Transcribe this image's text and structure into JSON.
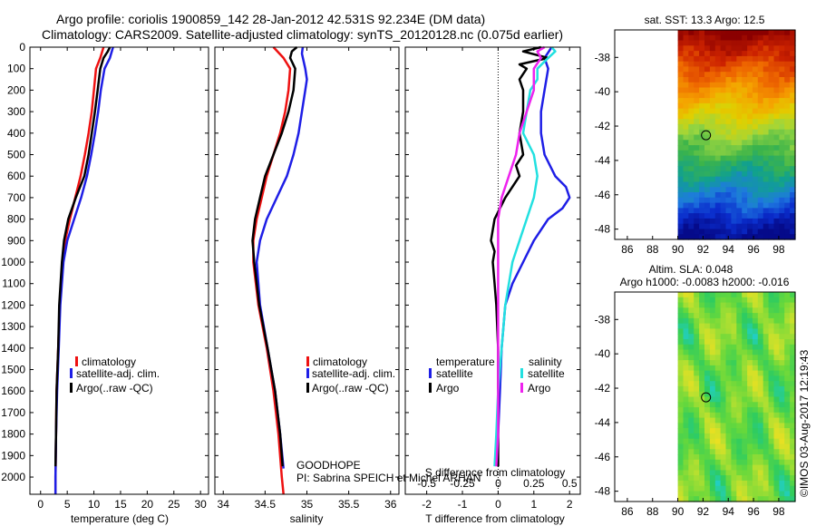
{
  "title": {
    "line1": "Argo profile: coriolis 1900859_142 28-Jan-2012 42.531S 92.234E (DM data)",
    "line2": "Climatology: CARS2009. Satellite-adjusted climatology: synTS_20120128.nc (0.075d earlier)"
  },
  "colors": {
    "climatology": "#ee1111",
    "satellite": "#1e1ee6",
    "argo": "#000000",
    "satellite_salinity": "#22e0e0",
    "argo_salinity": "#ee22ee"
  },
  "chart_data": [
    {
      "type": "line",
      "name": "temperature-profile",
      "xlabel": "temperature (deg C)",
      "ylabel": "",
      "xlim": [
        -2,
        31.5
      ],
      "ylim": [
        2080,
        0
      ],
      "xticks": [
        "0",
        "5",
        "10",
        "15",
        "20",
        "25",
        "30"
      ],
      "yticks": [
        "0",
        "100",
        "200",
        "300",
        "400",
        "500",
        "600",
        "700",
        "800",
        "900",
        "1000",
        "1100",
        "1200",
        "1300",
        "1400",
        "1500",
        "1600",
        "1700",
        "1800",
        "1900",
        "2000"
      ],
      "legend": [
        "climatology",
        "satellite-adj. clim.",
        "Argo(..raw -QC)"
      ],
      "series": [
        {
          "name": "climatology",
          "color": "#ee1111",
          "depth": [
            0,
            50,
            100,
            200,
            300,
            400,
            500,
            600,
            700,
            800,
            900,
            1000,
            1200,
            1400,
            1600,
            1800,
            2000,
            2080
          ],
          "values": [
            11.8,
            11.2,
            10.4,
            10.0,
            9.6,
            9.0,
            8.3,
            7.5,
            6.5,
            5.5,
            4.6,
            4.1,
            3.6,
            3.3,
            3.0,
            2.9,
            2.8,
            2.8
          ]
        },
        {
          "name": "satellite-adj. clim.",
          "color": "#1e1ee6",
          "depth": [
            0,
            50,
            100,
            200,
            300,
            400,
            500,
            600,
            700,
            800,
            900,
            1000,
            1200,
            1400,
            1600,
            1800,
            2000,
            2080
          ],
          "values": [
            13.6,
            13.0,
            12.0,
            11.3,
            10.8,
            10.2,
            9.5,
            8.7,
            7.6,
            6.3,
            5.0,
            4.3,
            3.7,
            3.4,
            3.1,
            2.9,
            2.8,
            2.8
          ]
        },
        {
          "name": "Argo(..raw -QC)",
          "color": "#000000",
          "depth": [
            0,
            20,
            50,
            100,
            200,
            300,
            400,
            500,
            600,
            700,
            800,
            900,
            1000,
            1200,
            1400,
            1600,
            1800,
            1950
          ],
          "values": [
            13.0,
            12.6,
            11.8,
            11.2,
            10.7,
            10.2,
            9.6,
            9.0,
            8.2,
            6.6,
            5.2,
            4.4,
            4.0,
            3.5,
            3.3,
            3.0,
            2.9,
            2.8
          ]
        }
      ]
    },
    {
      "type": "line",
      "name": "salinity-profile",
      "xlabel": "salinity",
      "xlim": [
        33.9,
        36.1
      ],
      "ylim": [
        2080,
        0
      ],
      "xticks": [
        "34",
        "34.5",
        "35",
        "35.5",
        "36"
      ],
      "legend": [
        "climatology",
        "satellite-adj. clim.",
        "Argo(..raw -QC)"
      ],
      "series": [
        {
          "name": "climatology",
          "color": "#ee1111",
          "depth": [
            0,
            50,
            100,
            200,
            300,
            400,
            500,
            600,
            700,
            800,
            900,
            1000,
            1200,
            1400,
            1600,
            1800,
            2000,
            2080
          ],
          "values": [
            34.6,
            34.72,
            34.8,
            34.78,
            34.74,
            34.68,
            34.6,
            34.52,
            34.46,
            34.4,
            34.36,
            34.36,
            34.42,
            34.52,
            34.6,
            34.66,
            34.7,
            34.72
          ]
        },
        {
          "name": "satellite-adj. clim.",
          "color": "#1e1ee6",
          "depth": [
            0,
            30,
            100,
            150,
            200,
            300,
            400,
            500,
            600,
            700,
            800,
            900,
            1000,
            1200,
            1400,
            1600,
            1800,
            1960
          ],
          "values": [
            34.95,
            34.94,
            34.98,
            35.0,
            34.98,
            34.94,
            34.9,
            34.84,
            34.76,
            34.64,
            34.52,
            34.44,
            34.4,
            34.44,
            34.53,
            34.62,
            34.68,
            34.72
          ]
        },
        {
          "name": "Argo(..raw -QC)",
          "color": "#000000",
          "depth": [
            0,
            20,
            50,
            100,
            200,
            300,
            400,
            500,
            600,
            700,
            800,
            900,
            1000,
            1200,
            1400,
            1600,
            1800,
            1950
          ],
          "values": [
            34.88,
            34.82,
            34.8,
            34.86,
            34.84,
            34.78,
            34.7,
            34.6,
            34.5,
            34.44,
            34.38,
            34.35,
            34.37,
            34.43,
            34.53,
            34.62,
            34.68,
            34.71
          ]
        }
      ]
    },
    {
      "type": "line",
      "name": "difference-profile",
      "xlabel": "T difference from climatology",
      "xlabel2": "S difference from climatology",
      "xlim": [
        -2.6,
        2.3
      ],
      "ylim": [
        2080,
        0
      ],
      "xticks": [
        "-2",
        "-1",
        "0",
        "1",
        "2"
      ],
      "xticks2": [
        "-0.5",
        "-0.25",
        "0",
        "0.25",
        "0.5"
      ],
      "legend": {
        "temperature_heading": "temperature",
        "salinity_heading": "salinity",
        "t_satellite": "satellite",
        "t_argo": "Argo",
        "s_satellite": "satellite",
        "s_argo": "Argo"
      },
      "series": [
        {
          "name": "temperature satellite",
          "color": "#1e1ee6",
          "depth": [
            0,
            50,
            100,
            200,
            300,
            400,
            500,
            600,
            650,
            700,
            750,
            800,
            900,
            1000,
            1100,
            1200,
            1400,
            1600,
            1800,
            1950
          ],
          "values": [
            1.5,
            1.3,
            1.4,
            1.3,
            1.2,
            1.2,
            1.3,
            1.6,
            1.9,
            2.0,
            1.8,
            1.4,
            1.0,
            0.7,
            0.4,
            0.2,
            0.1,
            0.05,
            0.0,
            0.0
          ]
        },
        {
          "name": "temperature Argo",
          "color": "#000000",
          "depth": [
            0,
            20,
            50,
            80,
            100,
            150,
            200,
            300,
            400,
            500,
            550,
            600,
            700,
            800,
            850,
            900,
            950,
            1000,
            1100,
            1200,
            1400,
            1600,
            1800,
            1950
          ],
          "values": [
            1.2,
            0.7,
            1.4,
            0.6,
            0.8,
            0.6,
            0.7,
            0.7,
            0.6,
            0.7,
            0.5,
            0.6,
            0.2,
            -0.1,
            -0.15,
            -0.2,
            -0.1,
            -0.15,
            -0.1,
            -0.05,
            0.0,
            0.0,
            0.0,
            0.0
          ]
        },
        {
          "name": "salinity satellite",
          "color": "#22e0e0",
          "depth": [
            0,
            20,
            50,
            100,
            150,
            200,
            300,
            400,
            500,
            600,
            700,
            800,
            900,
            1000,
            1200,
            1400,
            1600,
            1800,
            1950
          ],
          "values": [
            1.5,
            1.6,
            1.4,
            1.1,
            1.1,
            0.9,
            0.8,
            0.7,
            1.0,
            1.1,
            1.0,
            0.8,
            0.6,
            0.4,
            0.2,
            0.1,
            0.0,
            -0.05,
            -0.1
          ]
        },
        {
          "name": "salinity Argo",
          "color": "#ee22ee",
          "depth": [
            0,
            20,
            50,
            100,
            200,
            300,
            400,
            500,
            600,
            700,
            800,
            900,
            1000,
            1200,
            1400,
            1600,
            1800,
            1950
          ],
          "values": [
            1.3,
            1.1,
            1.2,
            1.0,
            1.0,
            0.8,
            0.6,
            0.5,
            0.3,
            0.1,
            0.0,
            0.0,
            0.0,
            0.0,
            0.0,
            0.0,
            0.0,
            -0.05
          ]
        }
      ]
    },
    {
      "type": "heatmap",
      "name": "sst-map",
      "title": "sat. SST: 13.3 Argo: 12.5",
      "xlim": [
        85,
        99.3
      ],
      "ylim": [
        -48.6,
        -36.4
      ],
      "xticks": [
        "86",
        "88",
        "90",
        "92",
        "94",
        "96",
        "98"
      ],
      "yticks": [
        "-38",
        "-40",
        "-42",
        "-44",
        "-46",
        "-48"
      ],
      "data_xlim": [
        90,
        99.3
      ],
      "profile_location": [
        92.234,
        -42.531
      ],
      "colormap": [
        "#8b0000",
        "#cc2200",
        "#ee6600",
        "#f5a300",
        "#e0d000",
        "#9ad640",
        "#3cb44a",
        "#10a090",
        "#1e7adf",
        "#0a2ccc",
        "#050a8a"
      ]
    },
    {
      "type": "heatmap",
      "name": "sla-map",
      "title": "Altim. SLA: 0.048",
      "subtitle": "Argo h1000: -0.0083 h2000: -0.016",
      "xlim": [
        85,
        99.3
      ],
      "ylim": [
        -48.6,
        -36.4
      ],
      "xticks": [
        "86",
        "88",
        "90",
        "92",
        "94",
        "96",
        "98"
      ],
      "yticks": [
        "-38",
        "-40",
        "-42",
        "-44",
        "-46",
        "-48"
      ],
      "data_xlim": [
        90,
        99.3
      ],
      "profile_location": [
        92.234,
        -42.531
      ],
      "colormap": [
        "#1ecfe0",
        "#2ecc60",
        "#66d83c",
        "#b8e030",
        "#f0e020",
        "#f8a020"
      ]
    }
  ],
  "annotations": {
    "program": "GOODHOPE",
    "pi": "PI: Sabrina SPEICH et Michel ARHAN",
    "credit": "©IMOS 03-Aug-2017 12:19:43"
  }
}
